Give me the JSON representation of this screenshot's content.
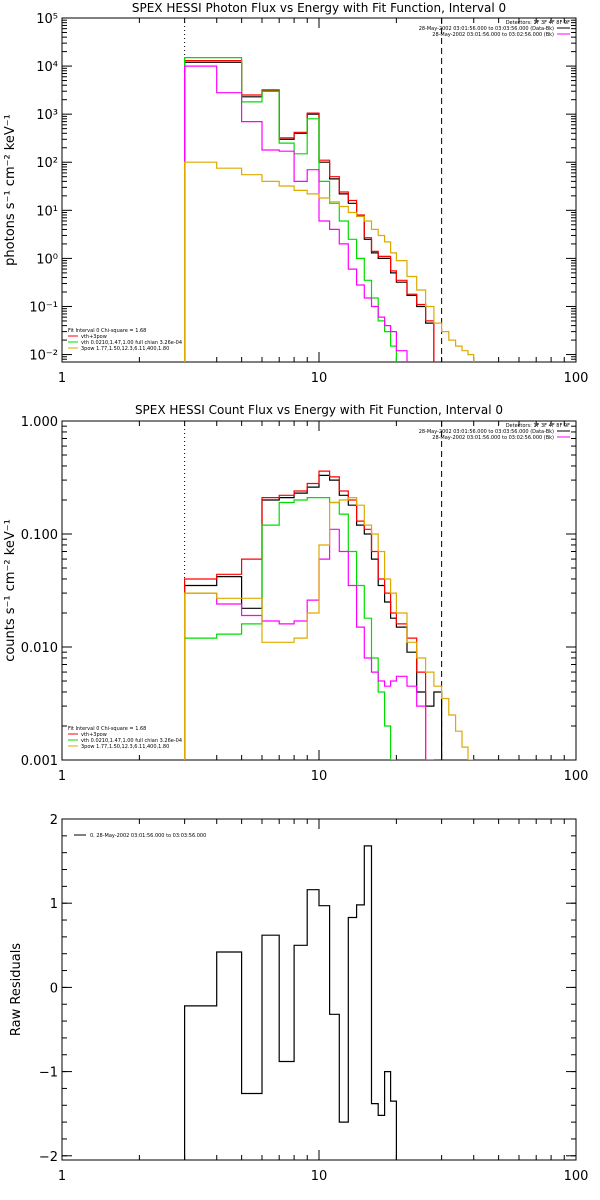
{
  "chart_data": [
    {
      "type": "line",
      "title": "SPEX HESSI Photon Flux vs Energy with Fit Function, Interval 0",
      "xlabel": "",
      "ylabel": "photons s⁻¹ cm⁻² keV⁻¹",
      "xscale": "log",
      "yscale": "log",
      "xlim": [
        1,
        100
      ],
      "ylim": [
        0.007,
        100000
      ],
      "xticks": [
        1,
        10,
        100
      ],
      "xtick_labels": [
        "1",
        "10",
        "100"
      ],
      "yticks": [
        0.01,
        0.1,
        1,
        10,
        100,
        1000,
        10000,
        100000
      ],
      "ytick_labels": [
        "10⁻²",
        "10⁻¹",
        "10⁰",
        "10¹",
        "10²",
        "10³",
        "10⁴",
        "10⁵"
      ],
      "vlines": [
        {
          "x": 3,
          "style": "dotted"
        },
        {
          "x": 30,
          "style": "dashed"
        }
      ],
      "edges": [
        3,
        4,
        5,
        6,
        7,
        8,
        9,
        10,
        11,
        12,
        13,
        14,
        15,
        16,
        17,
        18,
        19,
        20,
        22,
        24,
        26,
        28,
        30,
        32,
        34,
        36,
        38,
        40,
        42
      ],
      "legend_top": [
        "Detectors: 1F 3F 4F 8F 9F",
        "28-May-2002 03:01:56.000 to 03:03:56.000 (Data-Bk)",
        "28-May-2002 03:01:56.000 to 03:02:56.000 (Bk)"
      ],
      "legend_top_colors": [
        "#000000",
        "#ff00ff"
      ],
      "legend_fit": [
        "Fit Interval 0   Chi-square = 1.68",
        "vth+3pow",
        "vth 0.0210,1.47,1.00  full chian 3.26e-04",
        "3pow 1.77,1.50,12.3,6.11,400,1.80"
      ],
      "legend_fit_colors": [
        "#ff0000",
        "#00dd00",
        "#ddaa00"
      ],
      "series": [
        {
          "color": "#000000",
          "values": [
            12000,
            12000,
            2300,
            3000,
            300,
            400,
            1000,
            100,
            45,
            22,
            14,
            7.5,
            2.5,
            1.3,
            1.0,
            1.0,
            0.5,
            0.32,
            0.17,
            0.1,
            0.045,
            null,
            null,
            null,
            null,
            null,
            null,
            null
          ]
        },
        {
          "color": "#ff0000",
          "values": [
            13000,
            13000,
            2500,
            3200,
            320,
            420,
            1050,
            110,
            50,
            24,
            16,
            8,
            2.7,
            1.4,
            1.1,
            1.1,
            0.55,
            0.35,
            0.18,
            0.11,
            0.05,
            null,
            null,
            null,
            null,
            null,
            null,
            null
          ]
        },
        {
          "color": "#00dd00",
          "values": [
            15000,
            15000,
            1800,
            3000,
            250,
            150,
            800,
            40,
            14,
            6,
            2.5,
            1.0,
            0.35,
            0.15,
            0.05,
            0.03,
            0.015,
            null,
            null,
            null,
            null,
            null,
            null,
            null,
            null,
            null,
            null,
            null
          ]
        },
        {
          "color": "#ff00ff",
          "values": [
            10000,
            2800,
            700,
            180,
            170,
            40,
            70,
            6,
            4,
            2,
            0.6,
            0.28,
            0.15,
            0.1,
            0.06,
            0.04,
            0.03,
            0.012,
            null,
            null,
            null,
            null,
            null,
            null,
            null,
            null,
            null,
            null
          ]
        },
        {
          "color": "#ddaa00",
          "values": [
            100,
            75,
            55,
            40,
            32,
            26,
            22,
            18,
            15,
            12,
            9,
            7.5,
            6,
            4,
            3,
            2.2,
            1.3,
            0.9,
            0.42,
            0.22,
            0.1,
            0.045,
            0.03,
            0.02,
            0.015,
            0.012,
            0.01,
            null
          ]
        }
      ]
    },
    {
      "type": "line",
      "title": "SPEX HESSI Count Flux vs Energy with Fit Function, Interval 0",
      "xlabel": "",
      "ylabel": "counts s⁻¹ cm⁻² keV⁻¹",
      "xscale": "log",
      "yscale": "log",
      "xlim": [
        1,
        100
      ],
      "ylim": [
        0.001,
        1
      ],
      "xticks": [
        1,
        10,
        100
      ],
      "xtick_labels": [
        "1",
        "10",
        "100"
      ],
      "yticks": [
        0.001,
        0.01,
        0.1,
        1
      ],
      "ytick_labels": [
        "0.001",
        "0.010",
        "0.100",
        "1.000"
      ],
      "vlines": [
        {
          "x": 3,
          "style": "dotted"
        },
        {
          "x": 30,
          "style": "dashed"
        }
      ],
      "edges": [
        3,
        4,
        5,
        6,
        7,
        8,
        9,
        10,
        11,
        12,
        13,
        14,
        15,
        16,
        17,
        18,
        19,
        20,
        22,
        24,
        26,
        28,
        30,
        32,
        34,
        36,
        38,
        40,
        42
      ],
      "legend_top": [
        "Detectors: 1F 3F 4F 8F 9F",
        "28-May-2002 03:01:56.000 to 03:03:56.000 (Data-Bk)",
        "28-May-2002 03:01:56.000 to 03:02:56.000 (Bk)"
      ],
      "legend_top_colors": [
        "#000000",
        "#ff00ff"
      ],
      "legend_fit": [
        "Fit Interval 0   Chi-square = 1.68",
        "vth+3pow",
        "vth 0.0210,1.47,1.00  full chian 3.26e-04",
        "3pow 1.77,1.50,12.3,6.11,400,1.80"
      ],
      "legend_fit_colors": [
        "#ff0000",
        "#00dd00",
        "#ddaa00"
      ],
      "series": [
        {
          "color": "#000000",
          "values": [
            0.035,
            0.042,
            0.022,
            0.2,
            0.21,
            0.23,
            0.26,
            0.33,
            0.3,
            0.22,
            0.18,
            0.12,
            0.1,
            0.06,
            0.035,
            0.025,
            0.018,
            0.015,
            0.009,
            0.004,
            0.003,
            0.004,
            null,
            null,
            null,
            null,
            null,
            null
          ]
        },
        {
          "color": "#ff0000",
          "values": [
            0.04,
            0.044,
            0.06,
            0.21,
            0.22,
            0.24,
            0.28,
            0.36,
            0.32,
            0.24,
            0.2,
            0.13,
            0.11,
            0.07,
            0.04,
            0.03,
            0.02,
            0.016,
            0.012,
            0.006,
            null,
            null,
            null,
            null,
            null,
            null,
            null,
            null
          ]
        },
        {
          "color": "#00dd00",
          "values": [
            0.012,
            0.013,
            0.016,
            0.12,
            0.19,
            0.2,
            0.21,
            0.21,
            0.19,
            0.15,
            0.07,
            0.035,
            0.018,
            0.008,
            0.004,
            0.002,
            0.001,
            null,
            null,
            null,
            null,
            null,
            null,
            null,
            null,
            null,
            null,
            null
          ]
        },
        {
          "color": "#ff00ff",
          "values": [
            0.03,
            0.024,
            0.019,
            0.017,
            0.016,
            0.017,
            0.026,
            0.06,
            0.11,
            0.07,
            0.035,
            0.015,
            0.008,
            0.006,
            0.005,
            0.0045,
            0.005,
            0.0055,
            0.0045,
            0.003,
            0.001,
            null,
            null,
            null,
            null,
            null,
            null,
            null
          ]
        },
        {
          "color": "#ddaa00",
          "values": [
            0.03,
            0.027,
            0.027,
            0.011,
            0.011,
            0.012,
            0.02,
            0.08,
            0.19,
            0.2,
            0.21,
            0.18,
            0.12,
            0.1,
            0.07,
            0.04,
            0.03,
            0.02,
            0.011,
            0.008,
            0.006,
            0.0045,
            0.0035,
            0.0025,
            0.0018,
            0.0013,
            0.001,
            null
          ]
        }
      ]
    },
    {
      "type": "line",
      "title": "",
      "xlabel": "",
      "ylabel": "Raw Residuals",
      "xscale": "log",
      "yscale": "linear",
      "xlim": [
        1,
        100
      ],
      "ylim": [
        -2.05,
        2
      ],
      "xticks": [
        1,
        10,
        100
      ],
      "xtick_labels": [
        "1",
        "10",
        "100"
      ],
      "yticks": [
        -2,
        -1,
        0,
        1,
        2
      ],
      "ytick_labels": [
        "−2",
        "−1",
        "0",
        "1",
        "2"
      ],
      "legend": "0. 28-May-2002 03:01:56.000 to 03:03:56.000",
      "edges": [
        3,
        4,
        5,
        6,
        7,
        8,
        9,
        10,
        11,
        12,
        13,
        14,
        15,
        16,
        17,
        18,
        19,
        20,
        22,
        24,
        26,
        28,
        30
      ],
      "series": [
        {
          "color": "#000000",
          "values": [
            -0.22,
            0.42,
            -1.26,
            0.62,
            -0.88,
            0.5,
            1.16,
            0.97,
            -0.32,
            -1.6,
            0.83,
            0.98,
            1.68,
            -1.38,
            -1.52,
            -1.0,
            -1.35,
            null,
            null,
            null,
            null,
            null
          ]
        }
      ]
    }
  ]
}
